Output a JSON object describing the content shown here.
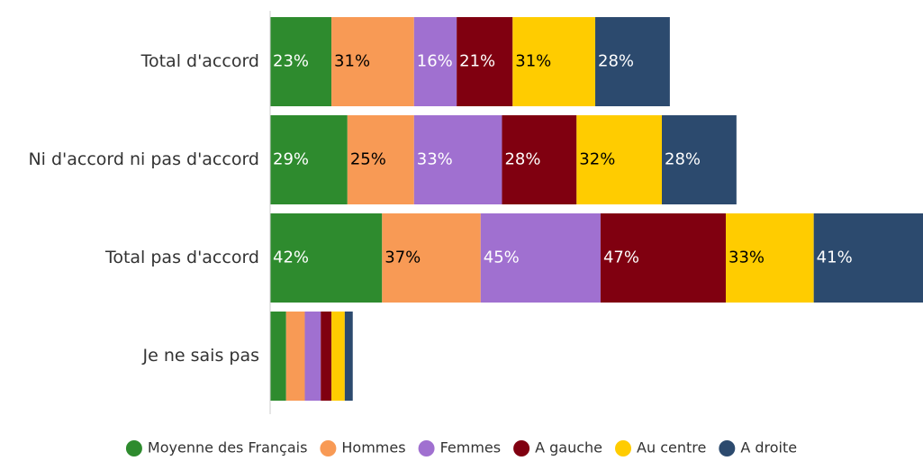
{
  "chart_data": {
    "type": "stacked-barh",
    "categories": [
      "Total d'accord",
      "Ni d'accord ni pas d'accord",
      "Total pas d'accord",
      "Je ne sais pas"
    ],
    "series": [
      {
        "name": "Moyenne des Français",
        "color": "#2e8b2e",
        "values": [
          23,
          29,
          42,
          6
        ],
        "value_labels": [
          "23%",
          "29%",
          "42%",
          null
        ]
      },
      {
        "name": "Hommes",
        "color": "#f89a55",
        "values": [
          31,
          25,
          37,
          7
        ],
        "value_labels": [
          "31%",
          "25%",
          "37%",
          null
        ]
      },
      {
        "name": "Femmes",
        "color": "#a070d0",
        "values": [
          16,
          33,
          45,
          6
        ],
        "value_labels": [
          "16%",
          "33%",
          "45%",
          null
        ]
      },
      {
        "name": "A gauche",
        "color": "#800010",
        "values": [
          21,
          28,
          47,
          4
        ],
        "value_labels": [
          "21%",
          "28%",
          "47%",
          null
        ]
      },
      {
        "name": "Au centre",
        "color": "#ffcc00",
        "values": [
          31,
          32,
          33,
          5
        ],
        "value_labels": [
          "31%",
          "32%",
          "33%",
          null
        ]
      },
      {
        "name": "A droite",
        "color": "#2c4a6e",
        "values": [
          28,
          28,
          41,
          3
        ],
        "value_labels": [
          "28%",
          "28%",
          "41%",
          null
        ]
      }
    ],
    "legend": "bottom"
  }
}
